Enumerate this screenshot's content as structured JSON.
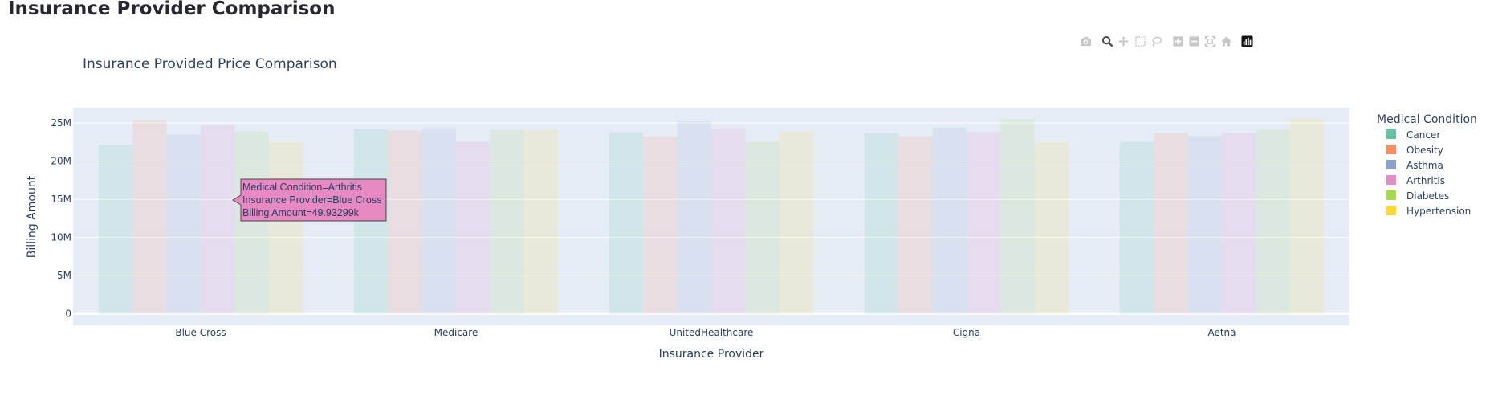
{
  "page": {
    "title": "Insurance Provider Comparison"
  },
  "modebar": {
    "icons": [
      "camera-icon",
      "zoom-icon",
      "pan-icon",
      "box-select-icon",
      "lasso-select-icon",
      "zoom-in-icon",
      "zoom-out-icon",
      "autoscale-icon",
      "reset-axes-icon",
      "plotly-logo-icon"
    ]
  },
  "chart_data": {
    "type": "bar",
    "title": "Insurance Provided Price Comparison",
    "xlabel": "Insurance Provider",
    "ylabel": "Billing Amount",
    "categories": [
      "Blue Cross",
      "Medicare",
      "UnitedHealthcare",
      "Cigna",
      "Aetna"
    ],
    "ylim": [
      -1500000,
      27000000
    ],
    "yticks": [
      0,
      5000000,
      10000000,
      15000000,
      20000000,
      25000000
    ],
    "ytick_labels": [
      "0",
      "5M",
      "10M",
      "15M",
      "20M",
      "25M"
    ],
    "grid": true,
    "legend": {
      "title": "Medical Condition",
      "position": "right"
    },
    "series": [
      {
        "name": "Cancer",
        "color": "#66c5a0",
        "values": [
          22100000,
          24200000,
          23800000,
          23700000,
          22500000
        ]
      },
      {
        "name": "Obesity",
        "color": "#fc8d62",
        "values": [
          25300000,
          24000000,
          23200000,
          23200000,
          23700000
        ]
      },
      {
        "name": "Asthma",
        "color": "#8da0cb",
        "values": [
          23500000,
          24300000,
          25200000,
          24400000,
          23300000
        ]
      },
      {
        "name": "Arthritis",
        "color": "#e78ac3",
        "values": [
          24700000,
          22500000,
          24300000,
          23800000,
          23700000
        ]
      },
      {
        "name": "Diabetes",
        "color": "#a6d854",
        "values": [
          23900000,
          24100000,
          22500000,
          25500000,
          24200000
        ]
      },
      {
        "name": "Hypertension",
        "color": "#ffd92f",
        "values": [
          22500000,
          24100000,
          23900000,
          22500000,
          25600000
        ]
      }
    ],
    "hover": {
      "line1": "Medical Condition=Arthritis",
      "line2": "Insurance Provider=Blue Cross",
      "line3": "Billing Amount=49.93299k",
      "color": "#e78ac3"
    }
  }
}
